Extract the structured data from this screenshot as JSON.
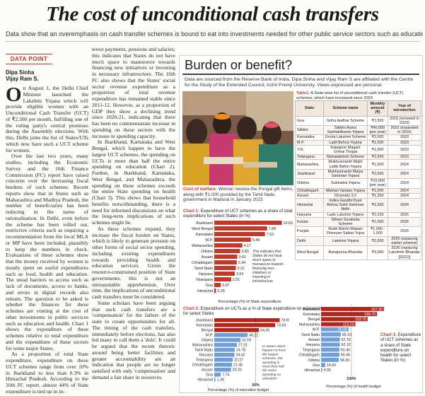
{
  "headline": "The cost of unconditional cash transfers",
  "standfirst": "Data show that an overemphasis on cash transfer schemes is bound to eat into investments needed for other public service sectors such as education",
  "section_label": "DATA POINT",
  "bylines": [
    "Dipa Sinha",
    "Vijay Ram S."
  ],
  "col1": {
    "dropcap": "O",
    "text": "n August 1, the Delhi Chief Minister launched the Lakshmi Yojana which will provide eligible women with an Unconditional Cash Transfer (UCT) of ₹2,500 per month, fulfilling one of the ruling party's central promises during the Assembly elections. With this, Delhi joins the list of States/UTs which now have such a UCT scheme for women.",
    "text2": "Over the last two years, many studies, including the Economic Survey and the 16th Finance Commission (FC) report have raised concerns over the increasing fiscal burdens of such schemes. Recent reports show that in States such as Maharashtra and Madhya Pradesh, the number of beneficiaries has been reducing in the name of rationalisation. In Delhi, even before the scheme has been rolled out, restrictive criteria such as requiring a recommendation from the local MLA or MP have been included, plausibly to keep the numbers in check. Evaluations of these schemes show that the money received by women is mostly spent on useful expenditures such as food, health and education. The usual barriers to access such as lack of documents, access to banks, and errors in digital records also remain. The question to be asked is whether the finances for these schemes are coming at the cost of other investments in public services such as education and health. Chart 1 shows the expenditure of these schemes relative to total expenditure and the expenditure of these sectors for some major States.",
    "text3": "As a proportion of total State expenditure, expenditure on these UCT schemes range from over 10% in Jharkhand to less than 0.3% in Himachal Pradesh. According to the 16th FC report, almost 44% of State expenditure is tied up in in-"
  },
  "col2": {
    "text": "terest payments, pensions and salaries; this indicates that States do not have much space to manoeuvre towards financing new initiatives or investing in necessary infrastructure. The 16th FC also shows that the States' social sector revenue expenditure as a proportion of total revenue expenditure has remained stable since 2011-12. However, as a proportion of GDP they show a declining trend since 2020-21, indicating that there has been no commensurate increase in spending on these sectors with the increase in spending capacity.",
    "text2": "In Jharkhand, Karnataka and West Bengal, which happen to have the largest UCT schemes, the spending on UCTs is more than half the entire spending on education (Chart 2). Further, in Jharkhand, Karnataka, West Bengal, and Maharashtra, the spending on these schemes exceeds the entire State spending on health (Chart 3). This shows that household benefits notwithstanding, there is a need for informed discussions on what the long-term implications of such schemes might be.",
    "text3": "As these schemes expand, they increase the fiscal burden on States, which is likely to generate pressure on other forms of social sector spending, including existing expenditures towards providing health and education services. Given the resource-constrained position of State governments, this is not an unreasonable apprehension. Over time, the implications of unconditional cash transfers must be considered.",
    "text4": "Some scholars have been arguing that such cash transfers are a 'compensation' for the failure of the state to create opportunities for all. The timing of the cash transfers, immediately before elections, has also led many to call them a 'dole'. It could be argued that the recent rhetoric around being better facilities and greater accountability are an indication that people are no longer satisfied with only 'compensation' and demand a fair share in resources."
  },
  "panel": {
    "title": "Burden or benefit?",
    "source": "Data are sourced from the Reserve Bank of India. Dipa Sinha and Vijay Ram S are affiliated with the Centre for the Study of the Extended Council, Azim Premji University. Views expressed are personal.",
    "caption_bold": "Cost of welfare:",
    "caption": " Women receive the Pongal gift items, along with ₹1,000 provided by the Tamil Nadu government in Madurai in January 2023"
  },
  "table": {
    "title_bold": "Table1:",
    "title": " A State-wise list of unconditional cash transfer (UCT) schemes, which have increased since 2023",
    "headers": [
      "State",
      "Scheme name",
      "Monthly amount (₹)",
      "Year of introduction"
    ],
    "rows": [
      [
        "Goa",
        "Griha Aadhar Scheme",
        "₹1,500",
        "2016 (renewed in 2023)"
      ],
      [
        "Sikkim",
        "Sikkim Aama Sashaktikaran Yojana",
        "₹40,000 (per year)",
        "2022 (expanded in 2023)"
      ],
      [
        "Karnataka",
        "Gruha Lakshmi Scheme",
        "₹2,000",
        "2023"
      ],
      [
        "M.P.",
        "Ladli Behna Yojana",
        "₹1,500",
        "2023"
      ],
      [
        "T.N.",
        "Kalaignar Magalir Urimai Thogai",
        "₹1,000",
        "2023"
      ],
      [
        "Telangana",
        "Mahalakshmi Scheme",
        "₹2,500",
        "2023"
      ],
      [
        "Maharashtra",
        "Mukhyamantri Majhi Ladki Bahin Yojana",
        "₹1,500",
        "2024"
      ],
      [
        "Jharkhand",
        "Mukhyamantri Maiya Samman Yojana",
        "₹2,500",
        "2024"
      ],
      [
        "Odisha",
        "Subhadra Yojana",
        "₹10,000 (per year)",
        "2024"
      ],
      [
        "Chhattisgarh",
        "Mahtari Vandan Yojana",
        "₹1,000",
        "2024"
      ],
      [
        "Assam",
        "Orunodoi 3.0",
        "₹1,250",
        "2024"
      ],
      [
        "Himachal",
        "Indira Gandhi Pyari Behna Sukh Samman Nidhi",
        "₹1,500",
        "2024"
      ],
      [
        "Haryana",
        "Lado Lakshmi Yojana",
        "₹2,100",
        "2025"
      ],
      [
        "Kerala",
        "Sthree Suraksha Scheme",
        "₹1,000",
        "2025"
      ],
      [
        "Punjab",
        "Mukh Mantri Mawan Dheeyan Satkar Yojna",
        "₹1,000 - 1,500",
        "2026"
      ],
      [
        "Delhi",
        "Lakshmi Yojana",
        "₹2,500",
        "2026 (replacing earlier scheme)"
      ],
      [
        "West Bengal",
        "Annapurna Bhandar",
        "₹3,000",
        "2026 (replacing Lakshmir Bhandar [2021])"
      ]
    ]
  },
  "chart_data": [
    {
      "type": "bar",
      "title_bold": "Chart 1:",
      "title": " Expenditure of UCT schemes as a share of total expenditure for select States (in %)",
      "categories": [
        "Jharkhand",
        "West Bengal",
        "Karnataka",
        "M.P.",
        "Maharashtra",
        "Odisha",
        "Assam",
        "Chhattisgarh",
        "Tamil Nadu",
        "Haryana",
        "Telangana",
        "Goa",
        "Himachal"
      ],
      "values": [
        10.03,
        7.84,
        7.53,
        5.44,
        4.17,
        3.83,
        3.41,
        3.34,
        3.21,
        3.04,
        2.51,
        0.97,
        0.26
      ],
      "value_labels": [
        "10.03",
        "7.84",
        "7.53",
        "5.44",
        "4.17",
        "3.83",
        "3.41",
        "3.34",
        "3.21",
        "3.04",
        "2.51",
        "0.97",
        "0.26"
      ],
      "xlabel": "Percentage (%) of State expenditure",
      "annotation": "This indicates that States do not have much space to manoeuvre towards financing new initiatives or investing in infrastructure",
      "colors": {
        "bar": "#c0392b",
        "highlight": "#6f9fd8"
      }
    },
    {
      "type": "bar",
      "title_bold": "Chart 2:",
      "title": " Expenditure on UCTs as a % of State expenditure on education for select States",
      "categories": [
        "Jharkhand",
        "Karnataka",
        "Bengal",
        "M.P.",
        "Odisha",
        "Maharashtra",
        "Tamil Nadu",
        "Haryana",
        "Telangana",
        "Chhattisgarh",
        "Assam",
        "Goa",
        "Himachal"
      ],
      "values": [
        78.99,
        73.59,
        54.05,
        40.22,
        31.59,
        27.31,
        24.78,
        24.42,
        22.27,
        21.4,
        20.2,
        7.74,
        1.38
      ],
      "value_labels": [
        "78.99",
        "73.59",
        "54.05",
        "40.22",
        "31.59",
        "27.31",
        "24.78",
        "24.42",
        "22.27",
        "21.40",
        "20.20",
        "7.74",
        "1.38"
      ],
      "xlabel": "Percentage (%) of education budget",
      "tick_mid": "50%",
      "annotation": "In States which happen to have the largest schemes, the spending is more than half the entire spending on education",
      "colors": {
        "dark": "#b5251b",
        "light": "#6f9fd8"
      }
    },
    {
      "type": "bar",
      "title_bold": "Chart 3:",
      "title": " Expenditure of UCT schemes as a share of State expenditure on health for select States (in %)",
      "categories": [
        "Jharkhand",
        "Karnataka",
        "Bengal",
        "Maharashtra",
        "M.P.",
        "Tamil Nadu",
        "Assam",
        "Haryana",
        "Telangana",
        "Chhattisgarh",
        "Odisha",
        "Goa",
        "Himachal"
      ],
      "values": [
        207.3,
        184.7,
        153.7,
        113.2,
        90.8,
        65.1,
        62.1,
        62.1,
        60.4,
        60.4,
        58.3,
        14.0,
        4.0
      ],
      "value_labels": [
        "207.30",
        "184.70",
        "153.70",
        "113.20",
        "90.80",
        "65.10",
        "62.10",
        "62.10",
        "60.40",
        "60.40",
        "58.30",
        "14.00",
        "4.00"
      ],
      "xlabel": "Percentage (%) of health budget",
      "tick_mid": "100%",
      "colors": {
        "dark": "#b5251b",
        "light": "#6f9fd8"
      }
    }
  ]
}
